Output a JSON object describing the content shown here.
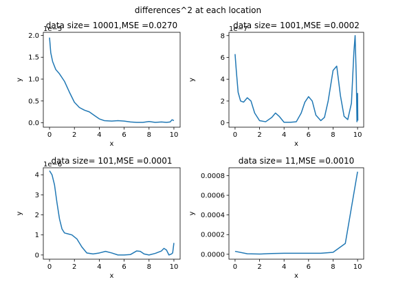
{
  "figure": {
    "suptitle": "differences^2 at each location"
  },
  "chart_data": [
    {
      "type": "line",
      "title": "data size= 10001,MSE =0.0270",
      "xlabel": "x",
      "ylabel": "y",
      "offset_text": "1e−5",
      "xlim": [
        -0.5,
        10.5
      ],
      "ylim": [
        -0.1,
        2.07
      ],
      "x_ticks": [
        0,
        2,
        4,
        6,
        8,
        10
      ],
      "y_ticks": [
        0.0,
        0.5,
        1.0,
        1.5,
        2.0
      ],
      "y_tick_labels": [
        "0.0",
        "0.5",
        "1.0",
        "1.5",
        "2.0"
      ],
      "series": [
        {
          "color": "#1f77b4",
          "x": [
            0,
            0.1,
            0.25,
            0.5,
            0.8,
            1.2,
            1.6,
            2.0,
            2.4,
            2.8,
            3.2,
            3.6,
            4.0,
            4.4,
            5.0,
            5.5,
            6.0,
            6.5,
            7.0,
            7.5,
            8.0,
            8.5,
            9.0,
            9.4,
            9.7,
            9.85,
            10.0
          ],
          "y": [
            1.95,
            1.6,
            1.4,
            1.22,
            1.12,
            0.95,
            0.7,
            0.47,
            0.35,
            0.29,
            0.25,
            0.17,
            0.09,
            0.05,
            0.04,
            0.05,
            0.04,
            0.02,
            0.01,
            0.01,
            0.03,
            0.01,
            0.02,
            0.01,
            0.02,
            0.07,
            0.05
          ]
        }
      ]
    },
    {
      "type": "line",
      "title": "data size= 1001,MSE =0.0002",
      "xlabel": "x",
      "ylabel": "y",
      "offset_text": "1e−7",
      "xlim": [
        -0.5,
        10.5
      ],
      "ylim": [
        -0.4,
        8.3
      ],
      "x_ticks": [
        0,
        2,
        4,
        6,
        8,
        10
      ],
      "y_ticks": [
        0,
        2,
        4,
        6,
        8
      ],
      "y_tick_labels": [
        "0",
        "2",
        "4",
        "6",
        "8"
      ],
      "series": [
        {
          "color": "#1f77b4",
          "x": [
            0,
            0.1,
            0.25,
            0.45,
            0.7,
            1.0,
            1.3,
            1.6,
            2.0,
            2.5,
            3.0,
            3.3,
            3.6,
            4.0,
            4.5,
            5.0,
            5.4,
            5.7,
            6.0,
            6.3,
            6.6,
            7.0,
            7.3,
            7.6,
            8.0,
            8.3,
            8.6,
            8.9,
            9.2,
            9.5,
            9.7,
            9.8,
            9.9,
            9.95,
            10.0,
            10.02
          ],
          "y": [
            6.3,
            4.8,
            2.8,
            2.0,
            1.9,
            2.3,
            2.0,
            0.9,
            0.2,
            0.1,
            0.5,
            0.9,
            0.6,
            0.05,
            0.05,
            0.1,
            0.9,
            1.9,
            2.4,
            2.0,
            0.7,
            0.2,
            0.5,
            2.0,
            4.8,
            5.2,
            2.5,
            0.6,
            0.3,
            1.8,
            6.5,
            8.0,
            4.0,
            0.1,
            2.7,
            0.2
          ]
        }
      ]
    },
    {
      "type": "line",
      "title": "data size= 101,MSE =0.0001",
      "xlabel": "x",
      "ylabel": "y",
      "offset_text": "1e−6",
      "xlim": [
        -0.5,
        10.5
      ],
      "ylim": [
        -0.21,
        4.35
      ],
      "x_ticks": [
        0,
        2,
        4,
        6,
        8,
        10
      ],
      "y_ticks": [
        0,
        1,
        2,
        3,
        4
      ],
      "y_tick_labels": [
        "0",
        "1",
        "2",
        "3",
        "4"
      ],
      "series": [
        {
          "color": "#1f77b4",
          "x": [
            0,
            0.2,
            0.4,
            0.6,
            0.8,
            1.0,
            1.2,
            1.5,
            1.8,
            2.2,
            2.6,
            3.0,
            3.5,
            4.0,
            4.5,
            5.0,
            5.5,
            6.0,
            6.5,
            7.0,
            7.3,
            7.6,
            8.0,
            8.5,
            9.0,
            9.2,
            9.4,
            9.6,
            9.8,
            9.9,
            10.0
          ],
          "y": [
            4.2,
            4.0,
            3.5,
            2.6,
            1.8,
            1.3,
            1.1,
            1.05,
            1.0,
            0.8,
            0.4,
            0.1,
            0.05,
            0.1,
            0.18,
            0.1,
            0.0,
            0.0,
            0.02,
            0.2,
            0.18,
            0.05,
            0.0,
            0.08,
            0.2,
            0.33,
            0.25,
            0.0,
            0.05,
            0.1,
            0.6
          ]
        }
      ]
    },
    {
      "type": "line",
      "title": "data size= 11,MSE =0.0010",
      "xlabel": "x",
      "ylabel": "y",
      "offset_text": "",
      "xlim": [
        -0.5,
        10.5
      ],
      "ylim": [
        -5e-05,
        0.00088
      ],
      "x_ticks": [
        0,
        2,
        4,
        6,
        8,
        10
      ],
      "y_ticks": [
        0,
        0.0002,
        0.0004,
        0.0006,
        0.0008
      ],
      "y_tick_labels": [
        "0.0000",
        "0.0002",
        "0.0004",
        "0.0006",
        "0.0008"
      ],
      "series": [
        {
          "color": "#1f77b4",
          "x": [
            0,
            1,
            2,
            3,
            4,
            5,
            6,
            7,
            8,
            9,
            10
          ],
          "y": [
            3e-05,
            5e-06,
            2e-06,
            8e-06,
            1e-05,
            1e-05,
            1e-05,
            1e-05,
            2e-05,
            0.00011,
            0.00084
          ]
        }
      ]
    }
  ]
}
